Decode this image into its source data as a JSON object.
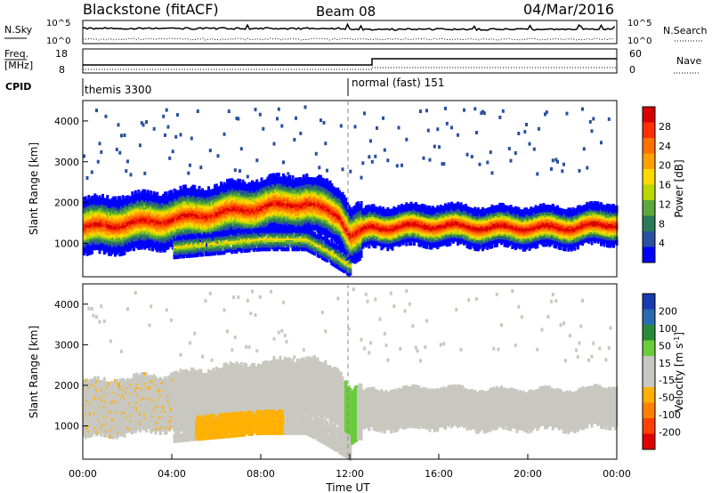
{
  "header": {
    "station": "Blackstone (fitACF)",
    "beam": "Beam 08",
    "date": "04/Mar/2016"
  },
  "panel_labels": {
    "nsky": "N.Sky",
    "freq": "Freq.",
    "freq_unit": "[MHz]",
    "cpid": "CPID",
    "nsearch": "N.Search",
    "nave": "Nave"
  },
  "noise_panel": {
    "left_ticks": [
      "10^5",
      "10^0"
    ],
    "right_ticks": [
      "10^5",
      "10^0"
    ]
  },
  "freq_panel": {
    "left_ticks": [
      "18",
      "8"
    ],
    "right_ticks": [
      "60",
      "0"
    ]
  },
  "cpid": {
    "mode1": "themis 3300",
    "mode2": "normal (fast) 151"
  },
  "colorbars": {
    "power": {
      "label": "Power [dB]",
      "ticks": [
        "28",
        "24",
        "20",
        "16",
        "12",
        "8",
        "4"
      ],
      "colors": [
        "#d80000",
        "#ff3000",
        "#ff7000",
        "#ffa000",
        "#ffd800",
        "#b8d800",
        "#5ca83c",
        "#2a7a5a",
        "#2a50a0",
        "#0000ff"
      ]
    },
    "velocity": {
      "label": "Velocity [m s",
      "label_sup": "-1",
      "label_end": "]",
      "ticks": [
        "200",
        "100",
        "50",
        "15",
        "-15",
        "-50",
        "-100",
        "-200"
      ],
      "colors": [
        "#1a3ab0",
        "#2a6ab0",
        "#2a8a3a",
        "#6acc3a",
        "#c8c8c0",
        "#c8c8c0",
        "#ffb000",
        "#ff8000",
        "#ff4000",
        "#e00000"
      ]
    }
  },
  "chart_data": [
    {
      "type": "heatmap",
      "title": "Power",
      "ylabel": "Slant Range [km]",
      "y_ticks": [
        "4000",
        "3000",
        "2000",
        "1000"
      ],
      "ylim": [
        180,
        4500
      ],
      "xlim": [
        0,
        24
      ],
      "description_values": {
        "band_center_km": [
          [
            0,
            1400
          ],
          [
            2,
            1500
          ],
          [
            4,
            1600
          ],
          [
            6,
            1750
          ],
          [
            8,
            1900
          ],
          [
            10,
            2000
          ],
          [
            11.5,
            1700
          ],
          [
            12,
            1200
          ],
          [
            13,
            1400
          ],
          [
            16,
            1450
          ],
          [
            18,
            1400
          ],
          [
            20,
            1400
          ],
          [
            22,
            1400
          ],
          [
            24,
            1500
          ]
        ],
        "lower_band_center_km": [
          [
            4,
            900
          ],
          [
            6,
            1000
          ],
          [
            8,
            1100
          ],
          [
            10,
            1100
          ],
          [
            11,
            800
          ],
          [
            12,
            450
          ]
        ]
      }
    },
    {
      "type": "heatmap",
      "title": "Velocity",
      "xlabel": "Time UT",
      "ylabel": "Slant Range [km]",
      "y_ticks": [
        "4000",
        "3000",
        "2000",
        "1000"
      ],
      "x_ticks": [
        "00:00",
        "04:00",
        "08:00",
        "12:00",
        "16:00",
        "20:00",
        "00:00"
      ],
      "ylim": [
        180,
        4500
      ],
      "xlim": [
        0,
        24
      ]
    }
  ],
  "axis_titles": {
    "ylabel": "Slant Range [km]",
    "xlabel": "Time UT"
  }
}
